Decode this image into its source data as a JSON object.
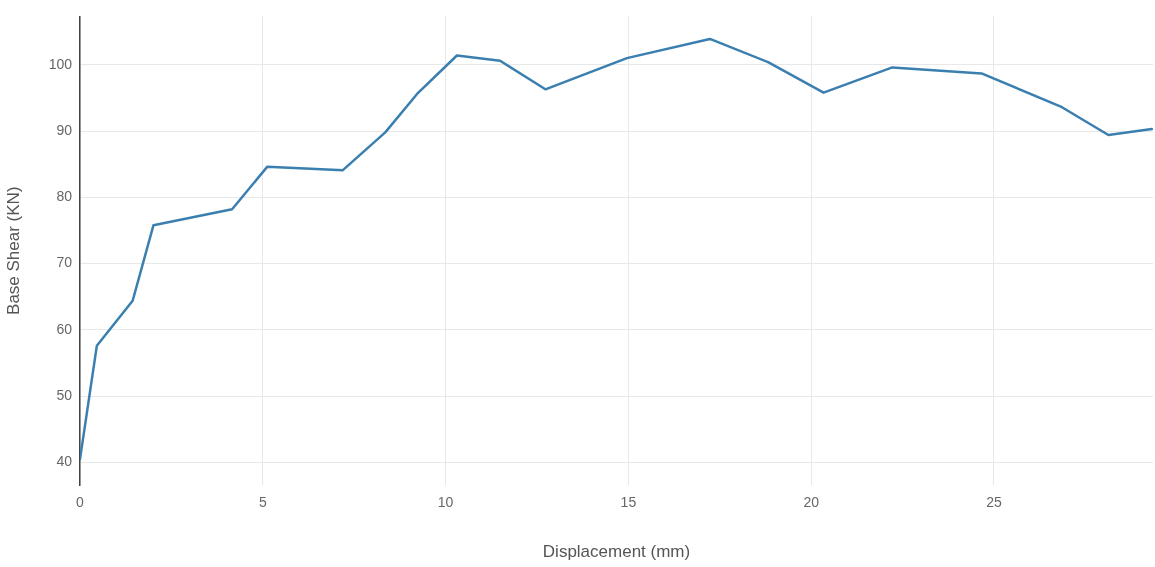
{
  "chart_data": {
    "type": "line",
    "xlabel": "Displacement (mm)",
    "ylabel": "Base Shear (KN)",
    "x": [
      0,
      0.46,
      1.44,
      2.01,
      4.16,
      5.12,
      7.19,
      8.35,
      9.22,
      10.31,
      11.49,
      12.73,
      14.96,
      17.23,
      18.82,
      20.34,
      22.22,
      24.66,
      26.86,
      28.13,
      29.32
    ],
    "series": [
      {
        "color": "#3a7fb0",
        "values": [
          40.5,
          57.6,
          64.4,
          75.8,
          78.2,
          84.6,
          84.1,
          89.8,
          95.6,
          101.4,
          100.6,
          96.3,
          101.0,
          103.9,
          100.4,
          95.8,
          99.6,
          98.7,
          93.6,
          89.4,
          90.3
        ]
      }
    ],
    "xlim": [
      0,
      29.35
    ],
    "ylim": [
      36.6,
      107.3
    ],
    "xticks": [
      0,
      5,
      10,
      15,
      20,
      25
    ],
    "yticks": [
      40,
      50,
      60,
      70,
      80,
      90,
      100
    ],
    "grid": true,
    "legend": false,
    "marker": "none",
    "line_style": "solid"
  }
}
